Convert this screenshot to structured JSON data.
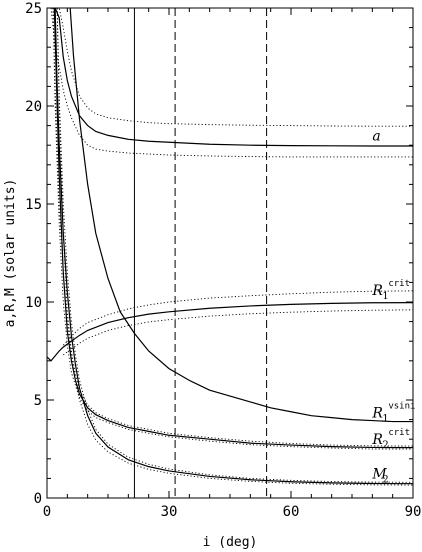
{
  "chart_data": {
    "type": "line",
    "title": "",
    "xlabel": "i (deg)",
    "ylabel": "a,R,M (solar units)",
    "xlim": [
      0,
      90
    ],
    "ylim": [
      0,
      25
    ],
    "xticks": [
      0,
      30,
      60,
      90
    ],
    "yticks": [
      0,
      5,
      10,
      15,
      20,
      25
    ],
    "grid": false,
    "vlines": [
      {
        "x": 21.5,
        "style": "solid"
      },
      {
        "x": 31.5,
        "style": "dashed"
      },
      {
        "x": 54.0,
        "style": "dashed"
      }
    ],
    "series": [
      {
        "name": "a",
        "style": "solid",
        "x": [
          1,
          1.5,
          2,
          3,
          4,
          5,
          6,
          8,
          10,
          12,
          15,
          20,
          25,
          30,
          40,
          50,
          60,
          70,
          80,
          90
        ],
        "y": [
          25,
          25,
          25,
          24.5,
          22.5,
          21.3,
          20.5,
          19.5,
          19.0,
          18.7,
          18.5,
          18.3,
          18.2,
          18.15,
          18.05,
          18.0,
          17.98,
          17.97,
          17.96,
          17.96
        ],
        "bands": [
          {
            "x": [
              1.5,
              2,
              3,
              4,
              5,
              6,
              8,
              10,
              12,
              15,
              20,
              25,
              30,
              40,
              50,
              60,
              70,
              80,
              90
            ],
            "y": [
              25,
              25,
              25,
              24.0,
              22.8,
              21.8,
              20.5,
              19.9,
              19.6,
              19.4,
              19.25,
              19.15,
              19.1,
              19.05,
              19.02,
              19.0,
              18.98,
              18.97,
              18.97
            ]
          },
          {
            "x": [
              1,
              1.5,
              2,
              3,
              4,
              5,
              6,
              8,
              10,
              12,
              15,
              20,
              25,
              30,
              40,
              50,
              60,
              70,
              80,
              90
            ],
            "y": [
              25,
              24,
              23,
              22,
              20.8,
              20.0,
              19.4,
              18.5,
              18.0,
              17.8,
              17.7,
              17.6,
              17.55,
              17.5,
              17.45,
              17.42,
              17.4,
              17.4,
              17.4,
              17.4
            ]
          }
        ]
      },
      {
        "name": "R1vsini",
        "label_main": "R",
        "label_sub": "1",
        "label_sup": "vsini",
        "style": "solid",
        "x": [
          5.7,
          6.5,
          8,
          10,
          12,
          15,
          18,
          21.5,
          25,
          30,
          35,
          40,
          45,
          50,
          55,
          60,
          65,
          70,
          75,
          80,
          85,
          90
        ],
        "y": [
          25,
          22.6,
          19.3,
          16.0,
          13.5,
          11.2,
          9.5,
          8.4,
          7.5,
          6.6,
          6.0,
          5.5,
          5.2,
          4.9,
          4.6,
          4.4,
          4.2,
          4.1,
          4.0,
          3.95,
          3.9,
          3.9
        ]
      },
      {
        "name": "R1crit",
        "label_main": "R",
        "label_sub": "1",
        "label_sup": "crit",
        "style": "solid",
        "x": [
          0,
          1,
          2,
          3,
          4,
          5,
          6,
          8,
          10,
          15,
          20,
          25,
          30,
          40,
          50,
          60,
          70,
          80,
          90
        ],
        "y": [
          7.2,
          7.0,
          7.25,
          7.5,
          7.7,
          7.85,
          8.0,
          8.3,
          8.55,
          8.95,
          9.2,
          9.38,
          9.5,
          9.68,
          9.8,
          9.88,
          9.93,
          9.96,
          9.97
        ],
        "bands": [
          {
            "x": [
              4,
              5,
              6,
              8,
              10,
              15,
              20,
              25,
              30,
              40,
              50,
              60,
              70,
              80,
              90
            ],
            "y": [
              7.8,
              8.0,
              8.25,
              8.65,
              8.95,
              9.35,
              9.65,
              9.85,
              10.0,
              10.2,
              10.32,
              10.42,
              10.5,
              10.55,
              10.57
            ]
          },
          {
            "x": [
              4,
              5,
              6,
              8,
              10,
              15,
              20,
              25,
              30,
              40,
              50,
              60,
              70,
              80,
              90
            ],
            "y": [
              7.3,
              7.45,
              7.6,
              7.9,
              8.15,
              8.55,
              8.8,
              8.98,
              9.1,
              9.28,
              9.4,
              9.48,
              9.54,
              9.58,
              9.6
            ]
          }
        ]
      },
      {
        "name": "R2crit",
        "label_main": "R",
        "label_sub": "2",
        "label_sup": "crit",
        "style": "solid",
        "x": [
          1.8,
          2.5,
          3,
          4,
          5,
          6,
          7,
          8,
          10,
          12,
          15,
          20,
          25,
          30,
          40,
          50,
          60,
          70,
          80,
          90
        ],
        "y": [
          25,
          20,
          16.5,
          11.5,
          8.5,
          7.0,
          6.0,
          5.3,
          4.6,
          4.25,
          3.95,
          3.6,
          3.4,
          3.2,
          3.0,
          2.8,
          2.7,
          2.62,
          2.58,
          2.57
        ],
        "bands": [
          {
            "x": [
              2.5,
              3,
              4,
              5,
              6,
              7,
              8,
              10,
              12,
              15,
              20,
              25,
              30,
              40,
              50,
              60,
              70,
              80,
              90
            ],
            "y": [
              25,
              20,
              13.5,
              9.5,
              7.5,
              6.3,
              5.5,
              4.75,
              4.35,
              4.05,
              3.7,
              3.5,
              3.3,
              3.08,
              2.9,
              2.78,
              2.7,
              2.66,
              2.65
            ]
          },
          {
            "x": [
              1.5,
              2,
              3,
              4,
              5,
              6,
              8,
              10,
              12,
              15,
              20,
              25,
              30,
              40,
              50,
              60,
              70,
              80,
              90
            ],
            "y": [
              25,
              20,
              14,
              10,
              7.8,
              6.4,
              5.1,
              4.45,
              4.1,
              3.85,
              3.5,
              3.3,
              3.12,
              2.9,
              2.72,
              2.62,
              2.55,
              2.5,
              2.5
            ]
          }
        ]
      },
      {
        "name": "M2",
        "label_main": "M",
        "label_sub": "2",
        "label_sup": "",
        "style": "solid",
        "x": [
          2.0,
          2.5,
          3,
          4,
          5,
          6,
          7,
          8,
          10,
          12,
          15,
          20,
          25,
          30,
          40,
          50,
          60,
          70,
          80,
          90
        ],
        "y": [
          25,
          21,
          18,
          13.5,
          10.5,
          8.3,
          6.8,
          5.6,
          4.2,
          3.3,
          2.6,
          1.95,
          1.6,
          1.38,
          1.1,
          0.93,
          0.83,
          0.77,
          0.74,
          0.73
        ],
        "bands": [
          {
            "x": [
              2.5,
              3,
              4,
              5,
              6,
              7,
              8,
              10,
              12,
              15,
              20,
              25,
              30,
              40,
              50,
              60,
              70,
              80,
              90
            ],
            "y": [
              25,
              20.5,
              15,
              11.5,
              9.0,
              7.3,
              6.0,
              4.5,
              3.5,
              2.75,
              2.08,
              1.72,
              1.48,
              1.18,
              1.0,
              0.9,
              0.84,
              0.81,
              0.8
            ]
          },
          {
            "x": [
              1.5,
              2,
              3,
              4,
              5,
              6,
              7,
              8,
              10,
              12,
              15,
              20,
              25,
              30,
              40,
              50,
              60,
              70,
              80,
              90
            ],
            "y": [
              25,
              21,
              15,
              11.5,
              9.0,
              7.3,
              6.0,
              5.0,
              3.75,
              2.95,
              2.35,
              1.78,
              1.46,
              1.26,
              1.0,
              0.85,
              0.75,
              0.7,
              0.67,
              0.66
            ]
          }
        ]
      }
    ],
    "curve_labels": [
      {
        "series": "a",
        "x": 80,
        "y": 18.25
      },
      {
        "series": "R1crit",
        "x": 80,
        "y": 10.35
      },
      {
        "series": "R1vsini",
        "x": 80,
        "y": 4.1
      },
      {
        "series": "R2crit",
        "x": 80,
        "y": 2.75
      },
      {
        "series": "M2",
        "x": 80,
        "y": 1.0
      }
    ]
  }
}
